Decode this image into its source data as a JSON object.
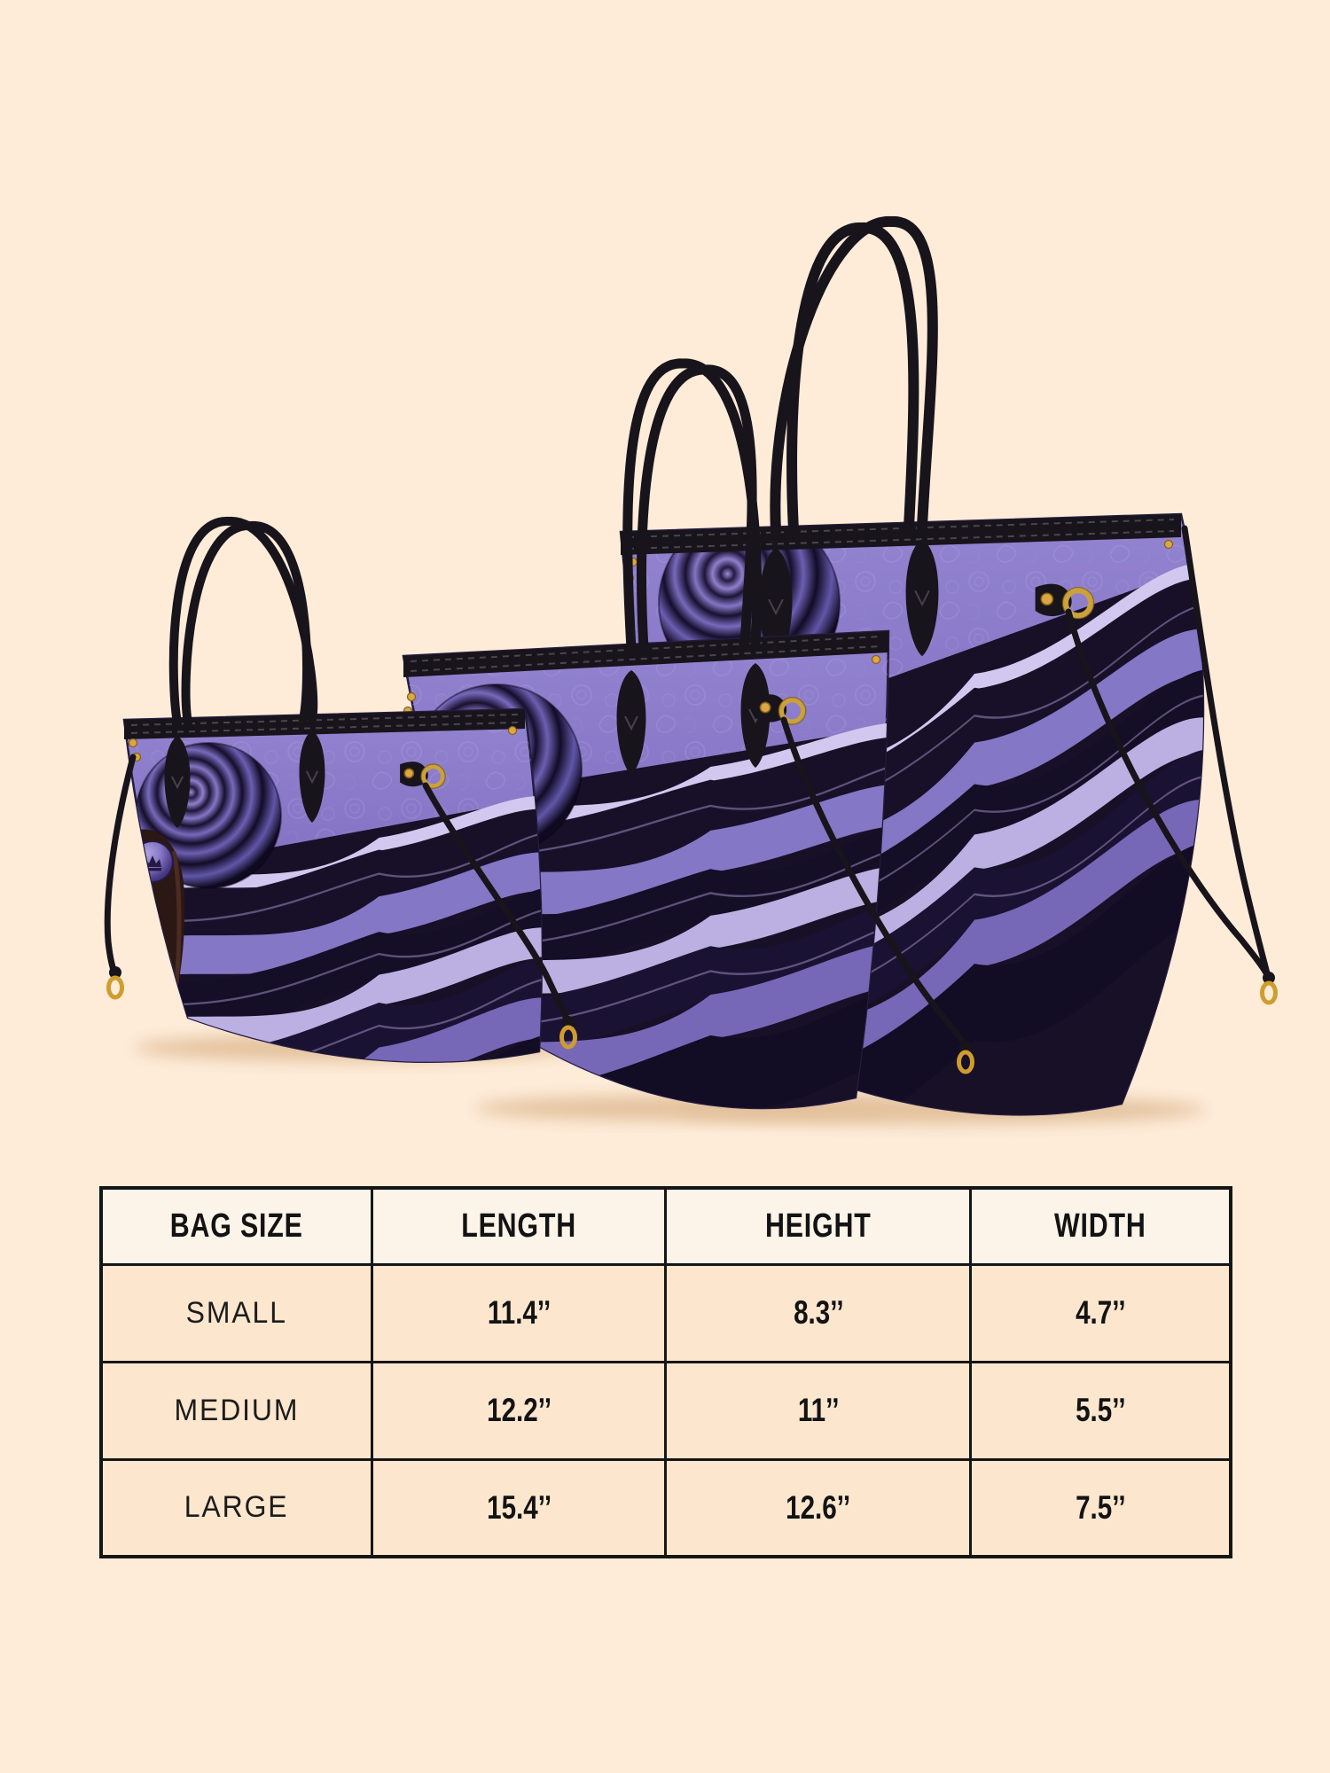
{
  "product_showcase": {
    "description": "Three purple paisley tote bags with black leather handles and gold hardware, shown front-to-back in small, medium and large sizes",
    "bag_sizes_shown": [
      "small",
      "medium",
      "large"
    ],
    "icons": [
      "crown-badge-icon",
      "d-ring-icon",
      "drawstring-clasp-icon"
    ],
    "colors": {
      "background": "#feecd9",
      "bag_purple": "#8b7bca",
      "bag_purple_deep": "#7464b4",
      "bag_dark_stripe": "#171028",
      "stripe_highlight": "#d2c8ef",
      "handle_black": "#18141b",
      "hardware_gold": "#cfa23c",
      "figure_brown": "#2b1713",
      "table_border": "#161616",
      "table_header_bg": "#fcf4e8",
      "table_cell_bg": "#fce7ce",
      "text": "#131313"
    }
  },
  "size_table": {
    "columns": [
      "BAG SIZE",
      "LENGTH",
      "HEIGHT",
      "WIDTH"
    ],
    "rows": [
      {
        "size": "SMALL",
        "length": "11.4’’",
        "height": "8.3’’",
        "width": "4.7’’"
      },
      {
        "size": "MEDIUM",
        "length": "12.2’’",
        "height": "11’’",
        "width": "5.5’’"
      },
      {
        "size": "LARGE",
        "length": "15.4’’",
        "height": "12.6’’",
        "width": "7.5’’"
      }
    ]
  }
}
